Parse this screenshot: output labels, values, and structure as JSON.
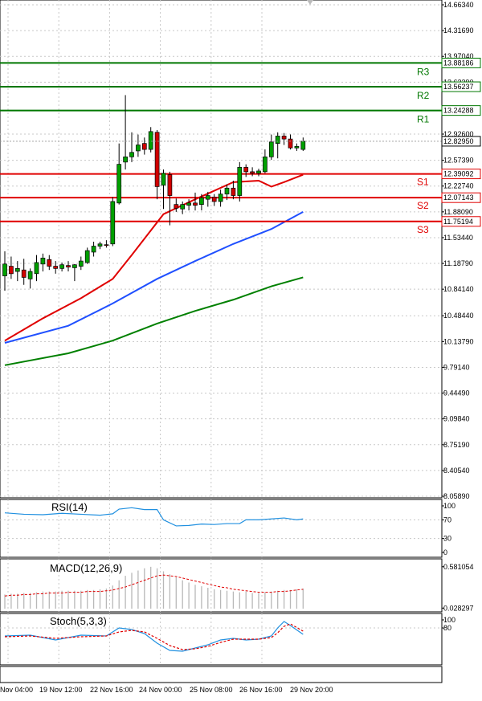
{
  "chart_data": [
    {
      "type": "candlestick",
      "ylim": [
        8.0589,
        14.6634
      ],
      "y_ticks": [
        "14.66340",
        "14.31690",
        "13.97040",
        "13.62390",
        "12.92600",
        "12.57390",
        "12.22740",
        "11.88090",
        "11.53440",
        "11.18790",
        "10.84140",
        "10.48440",
        "10.13790",
        "9.79140",
        "9.44490",
        "9.09840",
        "8.75190",
        "8.40540",
        "8.05890"
      ],
      "x_labels": [
        "Nov 04:00",
        "19 Nov 12:00",
        "22 Nov 16:00",
        "24 Nov 00:00",
        "25 Nov 08:00",
        "26 Nov 16:00",
        "29 Nov 20:00"
      ],
      "levels": [
        {
          "name": "R3",
          "value": 13.88186,
          "label": "13.88186",
          "color": "#007700"
        },
        {
          "name": "R2",
          "value": 13.56237,
          "label": "13.56237",
          "color": "#007700"
        },
        {
          "name": "R1",
          "value": 13.24288,
          "label": "13.24288",
          "color": "#007700"
        },
        {
          "name": "S1",
          "value": 12.39092,
          "label": "12.39092",
          "color": "#e00000"
        },
        {
          "name": "S2",
          "value": 12.07143,
          "label": "12.07143",
          "color": "#e00000"
        },
        {
          "name": "S3",
          "value": 11.75194,
          "label": "11.75194",
          "color": "#e00000"
        }
      ],
      "current_price": {
        "value": 12.8295,
        "label": "12.82950"
      },
      "candles": [
        {
          "o": 11.02,
          "h": 11.35,
          "l": 10.82,
          "c": 11.18
        },
        {
          "o": 11.15,
          "h": 11.28,
          "l": 10.98,
          "c": 11.05
        },
        {
          "o": 11.08,
          "h": 11.22,
          "l": 10.95,
          "c": 11.12
        },
        {
          "o": 11.1,
          "h": 11.25,
          "l": 10.9,
          "c": 11.0
        },
        {
          "o": 10.98,
          "h": 11.12,
          "l": 10.85,
          "c": 11.08
        },
        {
          "o": 11.05,
          "h": 11.3,
          "l": 10.95,
          "c": 11.2
        },
        {
          "o": 11.18,
          "h": 11.32,
          "l": 11.08,
          "c": 11.26
        },
        {
          "o": 11.24,
          "h": 11.3,
          "l": 11.1,
          "c": 11.15
        },
        {
          "o": 11.15,
          "h": 11.22,
          "l": 11.05,
          "c": 11.12
        },
        {
          "o": 11.12,
          "h": 11.2,
          "l": 11.08,
          "c": 11.17
        },
        {
          "o": 11.16,
          "h": 11.22,
          "l": 11.08,
          "c": 11.14
        },
        {
          "o": 11.13,
          "h": 11.18,
          "l": 10.95,
          "c": 11.17
        },
        {
          "o": 11.15,
          "h": 11.28,
          "l": 11.1,
          "c": 11.22
        },
        {
          "o": 11.2,
          "h": 11.4,
          "l": 11.18,
          "c": 11.36
        },
        {
          "o": 11.34,
          "h": 11.48,
          "l": 11.28,
          "c": 11.42
        },
        {
          "o": 11.42,
          "h": 11.48,
          "l": 11.38,
          "c": 11.45
        },
        {
          "o": 11.44,
          "h": 11.5,
          "l": 11.4,
          "c": 11.43
        },
        {
          "o": 11.45,
          "h": 12.08,
          "l": 11.42,
          "c": 12.02
        },
        {
          "o": 12.0,
          "h": 12.8,
          "l": 11.98,
          "c": 12.52
        },
        {
          "o": 12.55,
          "h": 13.45,
          "l": 12.45,
          "c": 12.62
        },
        {
          "o": 12.62,
          "h": 12.95,
          "l": 12.55,
          "c": 12.68
        },
        {
          "o": 12.7,
          "h": 12.92,
          "l": 12.62,
          "c": 12.78
        },
        {
          "o": 12.8,
          "h": 12.88,
          "l": 12.65,
          "c": 12.72
        },
        {
          "o": 12.72,
          "h": 13.02,
          "l": 12.68,
          "c": 12.96
        },
        {
          "o": 12.95,
          "h": 12.98,
          "l": 12.05,
          "c": 12.22
        },
        {
          "o": 12.24,
          "h": 12.45,
          "l": 11.92,
          "c": 12.4
        },
        {
          "o": 12.38,
          "h": 12.42,
          "l": 11.7,
          "c": 12.1
        },
        {
          "o": 11.98,
          "h": 12.06,
          "l": 11.88,
          "c": 11.93
        },
        {
          "o": 11.92,
          "h": 12.02,
          "l": 11.85,
          "c": 11.98
        },
        {
          "o": 11.97,
          "h": 12.05,
          "l": 11.9,
          "c": 12.0
        },
        {
          "o": 12.0,
          "h": 12.14,
          "l": 11.9,
          "c": 11.97
        },
        {
          "o": 11.98,
          "h": 12.12,
          "l": 11.9,
          "c": 12.07
        },
        {
          "o": 12.05,
          "h": 12.15,
          "l": 11.95,
          "c": 12.1
        },
        {
          "o": 12.08,
          "h": 12.12,
          "l": 11.96,
          "c": 12.02
        },
        {
          "o": 12.02,
          "h": 12.18,
          "l": 11.95,
          "c": 12.12
        },
        {
          "o": 12.12,
          "h": 12.25,
          "l": 12.04,
          "c": 12.2
        },
        {
          "o": 12.2,
          "h": 12.3,
          "l": 12.05,
          "c": 12.1
        },
        {
          "o": 12.1,
          "h": 12.55,
          "l": 12.02,
          "c": 12.48
        },
        {
          "o": 12.48,
          "h": 12.52,
          "l": 12.35,
          "c": 12.42
        },
        {
          "o": 12.42,
          "h": 12.48,
          "l": 12.36,
          "c": 12.4
        },
        {
          "o": 12.4,
          "h": 12.46,
          "l": 12.36,
          "c": 12.43
        },
        {
          "o": 12.42,
          "h": 12.72,
          "l": 12.4,
          "c": 12.62
        },
        {
          "o": 12.62,
          "h": 12.92,
          "l": 12.58,
          "c": 12.82
        },
        {
          "o": 12.8,
          "h": 12.95,
          "l": 12.6,
          "c": 12.9
        },
        {
          "o": 12.9,
          "h": 12.94,
          "l": 12.78,
          "c": 12.86
        },
        {
          "o": 12.86,
          "h": 12.92,
          "l": 12.72,
          "c": 12.74
        },
        {
          "o": 12.74,
          "h": 12.8,
          "l": 12.7,
          "c": 12.76
        },
        {
          "o": 12.72,
          "h": 12.88,
          "l": 12.7,
          "c": 12.83
        }
      ],
      "moving_averages": [
        {
          "color": "#e00000",
          "values": [
            [
              0,
              10.15
            ],
            [
              6,
              10.45
            ],
            [
              12,
              10.72
            ],
            [
              17,
              10.98
            ],
            [
              20,
              11.3
            ],
            [
              25,
              11.85
            ],
            [
              30,
              12.05
            ],
            [
              36,
              12.28
            ],
            [
              40,
              12.3
            ],
            [
              42,
              12.22
            ],
            [
              44,
              12.28
            ],
            [
              47,
              12.38
            ]
          ]
        },
        {
          "color": "#2050ff",
          "values": [
            [
              0,
              10.12
            ],
            [
              10,
              10.35
            ],
            [
              17,
              10.65
            ],
            [
              24,
              10.98
            ],
            [
              30,
              11.22
            ],
            [
              36,
              11.45
            ],
            [
              42,
              11.65
            ],
            [
              47,
              11.88
            ]
          ]
        },
        {
          "color": "#008000",
          "values": [
            [
              0,
              9.82
            ],
            [
              10,
              9.98
            ],
            [
              17,
              10.15
            ],
            [
              24,
              10.38
            ],
            [
              30,
              10.55
            ],
            [
              36,
              10.7
            ],
            [
              42,
              10.88
            ],
            [
              47,
              11.0
            ]
          ]
        }
      ]
    },
    {
      "type": "line",
      "title": "RSI(14)",
      "ylim": [
        0,
        100
      ],
      "y_ticks": [
        "100",
        "70",
        "30",
        "0"
      ],
      "series": [
        {
          "color": "#2090e0",
          "values": [
            [
              0,
              85
            ],
            [
              3,
              82
            ],
            [
              6,
              81
            ],
            [
              9,
              84
            ],
            [
              12,
              82
            ],
            [
              15,
              80
            ],
            [
              17,
              83
            ],
            [
              18,
              93
            ],
            [
              20,
              96
            ],
            [
              22,
              92
            ],
            [
              24,
              92
            ],
            [
              25,
              70
            ],
            [
              27,
              57
            ],
            [
              29,
              58
            ],
            [
              31,
              61
            ],
            [
              33,
              60
            ],
            [
              35,
              62
            ],
            [
              37,
              62
            ],
            [
              38,
              70
            ],
            [
              40,
              70
            ],
            [
              42,
              72
            ],
            [
              44,
              74
            ],
            [
              46,
              70
            ],
            [
              47,
              72
            ]
          ]
        }
      ]
    },
    {
      "type": "bar",
      "title": "MACD(12,26,9)",
      "ylim": [
        0.021,
        0.6
      ],
      "y_ticks": [
        "0.581054",
        "0.028297"
      ],
      "values": [
        0.21,
        0.22,
        0.22,
        0.23,
        0.23,
        0.24,
        0.25,
        0.25,
        0.25,
        0.26,
        0.26,
        0.26,
        0.26,
        0.27,
        0.27,
        0.28,
        0.29,
        0.33,
        0.4,
        0.46,
        0.5,
        0.53,
        0.56,
        0.58,
        0.56,
        0.52,
        0.48,
        0.44,
        0.4,
        0.37,
        0.34,
        0.32,
        0.3,
        0.28,
        0.27,
        0.26,
        0.25,
        0.24,
        0.25,
        0.23,
        0.23,
        0.24,
        0.25,
        0.26,
        0.27,
        0.27,
        0.28,
        0.29
      ],
      "signal": [
        0.19,
        0.2,
        0.2,
        0.21,
        0.21,
        0.22,
        0.22,
        0.23,
        0.23,
        0.23,
        0.24,
        0.24,
        0.24,
        0.25,
        0.25,
        0.25,
        0.26,
        0.27,
        0.29,
        0.31,
        0.34,
        0.37,
        0.4,
        0.43,
        0.46,
        0.47,
        0.46,
        0.45,
        0.43,
        0.41,
        0.39,
        0.37,
        0.35,
        0.33,
        0.31,
        0.3,
        0.28,
        0.27,
        0.26,
        0.25,
        0.24,
        0.24,
        0.24,
        0.25,
        0.25,
        0.26,
        0.27,
        0.28
      ]
    },
    {
      "type": "line",
      "title": "Stoch(5,3,3)",
      "ylim": [
        0,
        100
      ],
      "y_ticks": [
        "100",
        "80"
      ],
      "series": [
        {
          "color": "#2090e0",
          "values": [
            [
              0,
              60
            ],
            [
              4,
              62
            ],
            [
              8,
              50
            ],
            [
              12,
              62
            ],
            [
              16,
              60
            ],
            [
              18,
              80
            ],
            [
              20,
              76
            ],
            [
              22,
              66
            ],
            [
              24,
              42
            ],
            [
              26,
              24
            ],
            [
              28,
              22
            ],
            [
              30,
              30
            ],
            [
              32,
              38
            ],
            [
              34,
              50
            ],
            [
              36,
              54
            ],
            [
              38,
              50
            ],
            [
              40,
              52
            ],
            [
              42,
              60
            ],
            [
              43,
              80
            ],
            [
              44,
              96
            ],
            [
              45,
              86
            ],
            [
              47,
              64
            ]
          ]
        },
        {
          "color": "#e00000",
          "values": [
            [
              0,
              58
            ],
            [
              4,
              60
            ],
            [
              8,
              54
            ],
            [
              12,
              58
            ],
            [
              16,
              60
            ],
            [
              18,
              70
            ],
            [
              20,
              74
            ],
            [
              22,
              70
            ],
            [
              24,
              54
            ],
            [
              26,
              36
            ],
            [
              28,
              26
            ],
            [
              30,
              28
            ],
            [
              32,
              34
            ],
            [
              34,
              44
            ],
            [
              36,
              52
            ],
            [
              38,
              52
            ],
            [
              40,
              52
            ],
            [
              42,
              56
            ],
            [
              43,
              68
            ],
            [
              44,
              84
            ],
            [
              45,
              90
            ],
            [
              47,
              72
            ]
          ]
        }
      ]
    }
  ]
}
